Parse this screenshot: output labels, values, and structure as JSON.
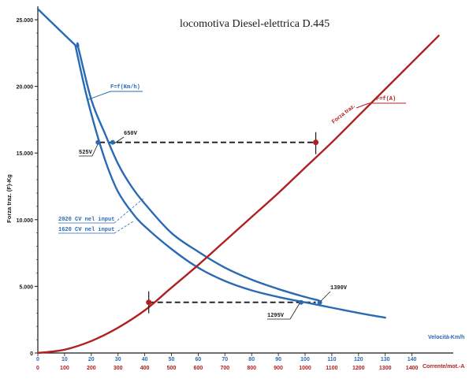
{
  "chart_data": {
    "type": "line",
    "title": "locomotiva  Diesel-elettrica   D.445",
    "ylabel": "Forza traz. (F)-Kg",
    "xlabel_speed": "Velocità-Km/h",
    "xlabel_current": "Corrente/mot.-A",
    "ylim": [
      0,
      25800
    ],
    "xlim_speed": [
      0,
      150
    ],
    "xlim_current": [
      0,
      1500
    ],
    "y_ticks": [
      {
        "value": 0,
        "label": "0"
      },
      {
        "value": 5000,
        "label": "5.000"
      },
      {
        "value": 10000,
        "label": "10.000"
      },
      {
        "value": 15000,
        "label": "15.000"
      },
      {
        "value": 20000,
        "label": "20.000"
      },
      {
        "value": 25000,
        "label": "25.000"
      }
    ],
    "x_ticks_speed": [
      "0",
      "10",
      "20",
      "30",
      "40",
      "50",
      "60",
      "70",
      "80",
      "90",
      "100",
      "110",
      "120",
      "130",
      "140"
    ],
    "x_ticks_current": [
      "0",
      "100",
      "200",
      "300",
      "400",
      "500",
      "600",
      "700",
      "800",
      "900",
      "1000",
      "1100",
      "1200",
      "1300",
      "1400"
    ],
    "colors": {
      "speed": "#2a6ab4",
      "current": "#b02020",
      "dash": "#1a1a1a"
    },
    "series": [
      {
        "name": "2020 CV nel input",
        "axis": "speed",
        "x": [
          0,
          14,
          15,
          20,
          25,
          30,
          35,
          40,
          50,
          60,
          70,
          80,
          90,
          100,
          105
        ],
        "y": [
          25800,
          23100,
          23000,
          19000,
          16500,
          14200,
          12500,
          11200,
          9000,
          7600,
          6400,
          5500,
          4800,
          4200,
          3950
        ]
      },
      {
        "name": "1620 CV nel input",
        "axis": "speed",
        "x": [
          14,
          18,
          22,
          26,
          30,
          35,
          40,
          50,
          60,
          70,
          80,
          90,
          100,
          110,
          120,
          130
        ],
        "y": [
          23100,
          19500,
          16500,
          14000,
          12100,
          10600,
          9500,
          7800,
          6400,
          5400,
          4700,
          4200,
          3800,
          3400,
          3000,
          2650
        ]
      },
      {
        "name": "F=f(A)",
        "axis": "current",
        "x": [
          0,
          100,
          200,
          300,
          400,
          500,
          600,
          700,
          800,
          900,
          1000,
          1100,
          1200,
          1300,
          1400,
          1500
        ],
        "y": [
          0,
          250,
          900,
          1900,
          3200,
          4900,
          6600,
          8400,
          10200,
          12000,
          13900,
          15800,
          17800,
          19800,
          21800,
          23800
        ]
      }
    ],
    "dashed_links": [
      {
        "y": 15800,
        "speed_from": 23,
        "current_to": 1040
      },
      {
        "y": 3800,
        "current_from": 415,
        "speed_to": 104
      }
    ],
    "annotations": {
      "speed_curve_label": "F=f(Km/h)",
      "current_curve_label": "F=f(A)",
      "current_line_label": "Forza traz.",
      "volt_650": "650V",
      "volt_525": "525V",
      "volt_1390": "1390V",
      "volt_1295": "1295V",
      "legend_2020": "2020 CV nel input",
      "legend_1620": "1620 CV nel input"
    }
  }
}
